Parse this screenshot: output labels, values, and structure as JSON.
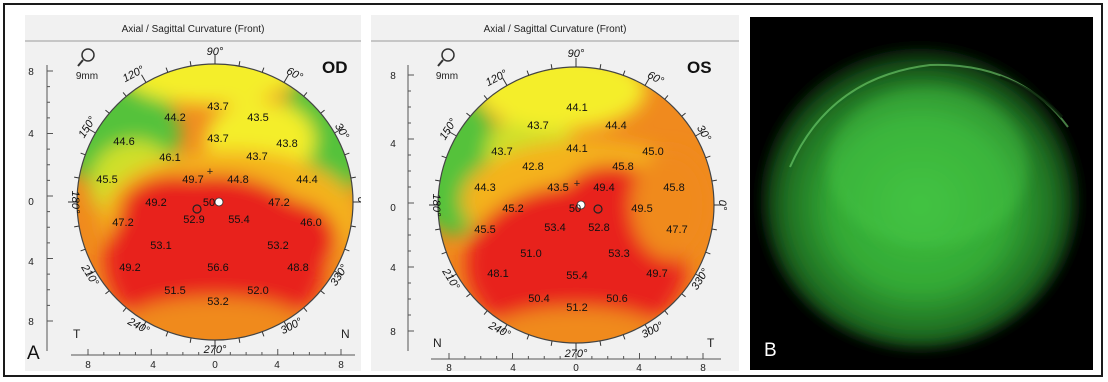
{
  "figure": {
    "od_map": {
      "header": "Axial / Sagittal Curvature (Front)",
      "eye": "OD",
      "zoom_label": "9mm",
      "panel_letter": "A",
      "temporal_label": "T",
      "nasal_label": "N",
      "angles": [
        "90°",
        "60°",
        "30°",
        "0°",
        "330°",
        "300°",
        "270°",
        "240°",
        "210°",
        "180°",
        "150°",
        "120°"
      ],
      "y_ticks": [
        "8",
        "4",
        "0",
        "4",
        "8"
      ],
      "x_ticks": [
        "8",
        "4",
        "0",
        "4",
        "8"
      ],
      "values": [
        "43.7",
        "44.2",
        "43.5",
        "43.7",
        "44.6",
        "46.1",
        "43.8",
        "43.7",
        "45.5",
        "49.7",
        "44.8",
        "44.4",
        "49.2",
        "50",
        "47.2",
        "47.2",
        "52.9",
        "55.4",
        "46.0",
        "53.1",
        "53.2",
        "49.2",
        "56.6",
        "48.8",
        "51.5",
        "52.0",
        "53.2"
      ]
    },
    "os_map": {
      "header": "Axial / Sagittal Curvature (Front)",
      "eye": "OS",
      "zoom_label": "9mm",
      "temporal_label": "T",
      "nasal_label": "N",
      "angles": [
        "90°",
        "60°",
        "30°",
        "0°",
        "330°",
        "300°",
        "270°",
        "240°",
        "210°",
        "180°",
        "150°",
        "120°"
      ],
      "y_ticks": [
        "8",
        "4",
        "0",
        "4",
        "8"
      ],
      "x_ticks": [
        "8",
        "4",
        "0",
        "4",
        "8"
      ],
      "values": [
        "44.1",
        "43.7",
        "44.4",
        "43.7",
        "44.1",
        "45.0",
        "42.8",
        "45.8",
        "44.3",
        "43.5",
        "49.4",
        "45.8",
        "45.2",
        "50",
        "49.5",
        "53.4",
        "52.8",
        "47.7",
        "45.5",
        "51.0",
        "53.3",
        "48.1",
        "55.4",
        "49.7",
        "50.4",
        "51.2",
        "50.6"
      ]
    },
    "photo": {
      "panel_letter": "B"
    },
    "colors": {
      "red": "#e8201e",
      "orange": "#f08a1e",
      "yellow": "#f4ee2a",
      "green": "#54c23a",
      "photo_green": "#3fbf3f"
    }
  }
}
